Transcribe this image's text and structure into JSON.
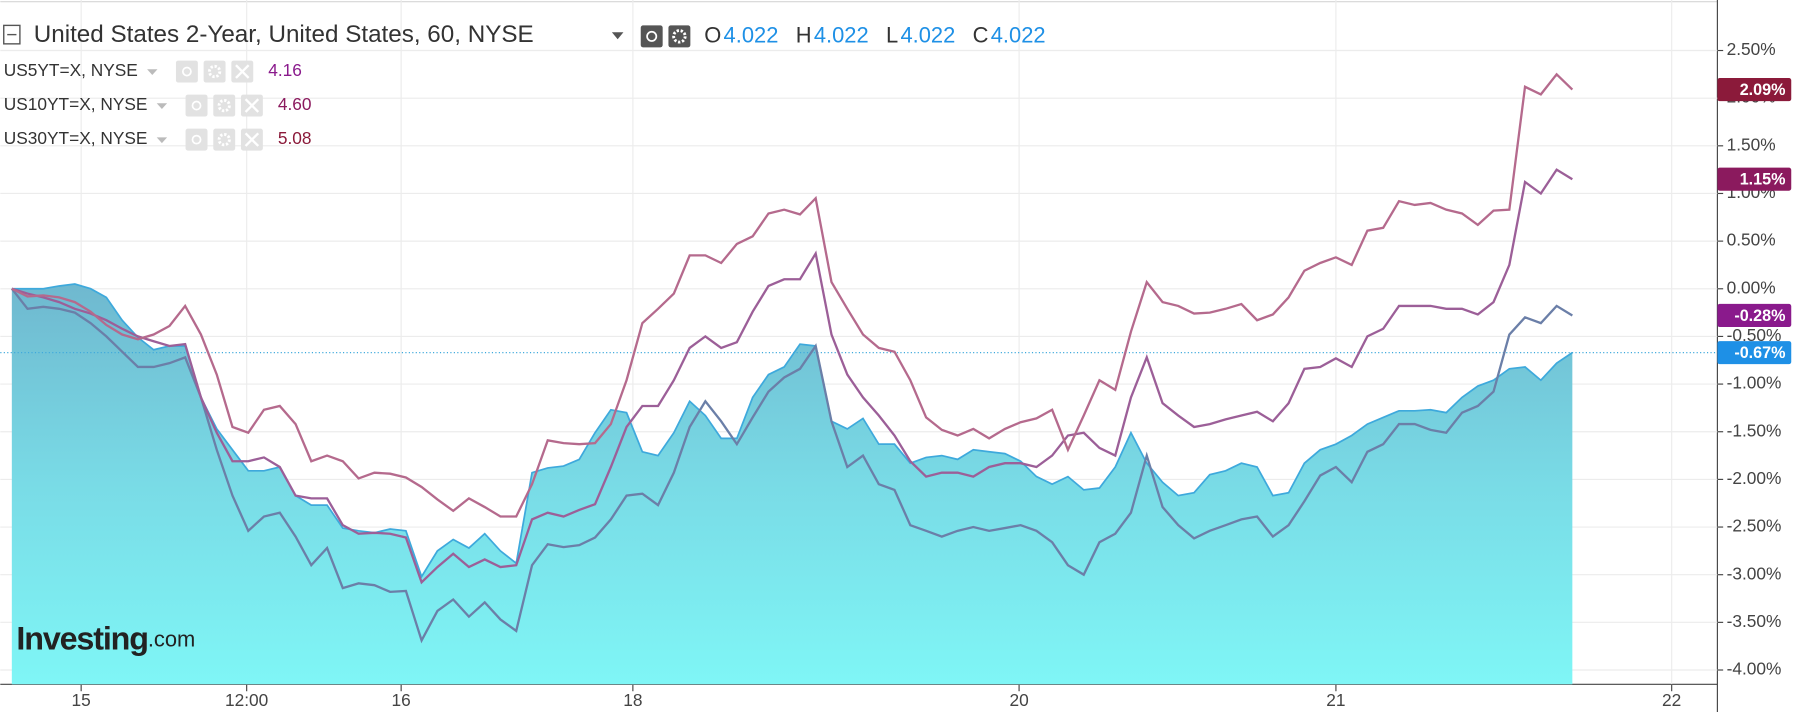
{
  "chart_data": {
    "type": "line",
    "ohlc": [
      {
        "label": "O",
        "value": "4.022"
      },
      {
        "label": "H",
        "value": "4.022"
      },
      {
        "label": "L",
        "value": "4.022"
      },
      {
        "label": "C",
        "value": "4.022"
      }
    ],
    "logo": {
      "brand": "Investing",
      "suffix": ".com"
    },
    "x": [
      0,
      1,
      2,
      3,
      4,
      5,
      6,
      7,
      8,
      9,
      10,
      11,
      12,
      13,
      14,
      15,
      16,
      17,
      18,
      19,
      20,
      21,
      22,
      23,
      24,
      25,
      26,
      27,
      28,
      29,
      30,
      31,
      32,
      33,
      34,
      35,
      36,
      37,
      38,
      39,
      40,
      41,
      42,
      43,
      44,
      45,
      46,
      47,
      48,
      49,
      50,
      51,
      52,
      53,
      54,
      55,
      56,
      57,
      58,
      59,
      60,
      61,
      62,
      63,
      64,
      65,
      66,
      67,
      68,
      69,
      70,
      71,
      72,
      73,
      74,
      75,
      76,
      77,
      78,
      79,
      80,
      81,
      82,
      83,
      84,
      85,
      86,
      87,
      88,
      89,
      90,
      91,
      92,
      93,
      94,
      95,
      96,
      97,
      98,
      99
    ],
    "xlim": [
      -0.73,
      108.2
    ],
    "xticks": [
      {
        "value": 4.4,
        "label": "15"
      },
      {
        "value": 14.9,
        "label": "12:00"
      },
      {
        "value": 24.7,
        "label": "16"
      },
      {
        "value": 39.4,
        "label": "18"
      },
      {
        "value": 63.9,
        "label": "20"
      },
      {
        "value": 84.0,
        "label": "21"
      },
      {
        "value": 105.3,
        "label": "22"
      }
    ],
    "ylim": [
      -4.15,
      3.03
    ],
    "yticks": [
      {
        "value": 2.5,
        "label": "2.50%"
      },
      {
        "value": 2.0,
        "label": "2.00%"
      },
      {
        "value": 1.5,
        "label": "1.50%"
      },
      {
        "value": 1.0,
        "label": "1.00%"
      },
      {
        "value": 0.5,
        "label": "0.50%"
      },
      {
        "value": 0,
        "label": "0.00%"
      },
      {
        "value": -0.5,
        "label": "-0.50%"
      },
      {
        "value": -1.0,
        "label": "-1.00%"
      },
      {
        "value": -1.5,
        "label": "-1.50%"
      },
      {
        "value": -2.0,
        "label": "-2.00%"
      },
      {
        "value": -2.5,
        "label": "-2.50%"
      },
      {
        "value": -3.0,
        "label": "-3.00%"
      },
      {
        "value": -3.5,
        "label": "-3.50%"
      },
      {
        "value": -4.0,
        "label": "-4.00%"
      }
    ],
    "grid": true,
    "series": [
      {
        "name": "United States 2-Year, United States, 60, NYSE",
        "style": "area",
        "color": "#3ea9dc",
        "label_color": "#1e90e6",
        "last_value_label": "-0.67%",
        "values": [
          0.0,
          0.0,
          0.0,
          0.03,
          0.05,
          0.0,
          -0.09,
          -0.33,
          -0.51,
          -0.64,
          -0.6,
          -0.6,
          -1.14,
          -1.47,
          -1.69,
          -1.91,
          -1.91,
          -1.87,
          -2.17,
          -2.27,
          -2.27,
          -2.51,
          -2.54,
          -2.56,
          -2.52,
          -2.54,
          -3.02,
          -2.75,
          -2.63,
          -2.72,
          -2.57,
          -2.75,
          -2.88,
          -1.93,
          -1.88,
          -1.86,
          -1.79,
          -1.51,
          -1.27,
          -1.3,
          -1.71,
          -1.75,
          -1.51,
          -1.18,
          -1.33,
          -1.57,
          -1.57,
          -1.14,
          -0.9,
          -0.82,
          -0.58,
          -0.6,
          -1.39,
          -1.47,
          -1.36,
          -1.63,
          -1.63,
          -1.83,
          -1.77,
          -1.75,
          -1.79,
          -1.69,
          -1.71,
          -1.73,
          -1.81,
          -1.97,
          -2.05,
          -1.97,
          -2.11,
          -2.09,
          -1.87,
          -1.51,
          -1.83,
          -2.03,
          -2.17,
          -2.14,
          -1.95,
          -1.91,
          -1.83,
          -1.87,
          -2.17,
          -2.14,
          -1.83,
          -1.69,
          -1.63,
          -1.54,
          -1.42,
          -1.35,
          -1.28,
          -1.28,
          -1.27,
          -1.3,
          -1.14,
          -1.02,
          -0.96,
          -0.84,
          -0.82,
          -0.96,
          -0.78,
          -0.67
        ]
      },
      {
        "name": "US5YT=X, NYSE",
        "price": "4.16",
        "style": "line",
        "color": "#6b7fa8",
        "label_color": "#8a1a8c",
        "last_value_label": "-0.28%",
        "values": [
          0.0,
          -0.21,
          -0.19,
          -0.21,
          -0.25,
          -0.36,
          -0.5,
          -0.66,
          -0.82,
          -0.82,
          -0.78,
          -0.72,
          -1.14,
          -1.69,
          -2.17,
          -2.54,
          -2.39,
          -2.35,
          -2.6,
          -2.9,
          -2.72,
          -3.14,
          -3.09,
          -3.11,
          -3.18,
          -3.17,
          -3.69,
          -3.38,
          -3.26,
          -3.44,
          -3.29,
          -3.47,
          -3.59,
          -2.9,
          -2.68,
          -2.71,
          -2.69,
          -2.61,
          -2.42,
          -2.17,
          -2.15,
          -2.27,
          -1.93,
          -1.45,
          -1.18,
          -1.39,
          -1.63,
          -1.35,
          -1.08,
          -0.93,
          -0.84,
          -0.6,
          -1.39,
          -1.87,
          -1.75,
          -2.05,
          -2.11,
          -2.48,
          -2.54,
          -2.6,
          -2.54,
          -2.5,
          -2.54,
          -2.51,
          -2.48,
          -2.54,
          -2.66,
          -2.9,
          -3.0,
          -2.66,
          -2.57,
          -2.35,
          -1.75,
          -2.29,
          -2.48,
          -2.62,
          -2.54,
          -2.48,
          -2.42,
          -2.39,
          -2.6,
          -2.48,
          -2.23,
          -1.96,
          -1.87,
          -2.03,
          -1.71,
          -1.63,
          -1.42,
          -1.42,
          -1.48,
          -1.51,
          -1.3,
          -1.23,
          -1.08,
          -0.48,
          -0.3,
          -0.36,
          -0.18,
          -0.28
        ]
      },
      {
        "name": "US10YT=X, NYSE",
        "price": "4.60",
        "style": "line",
        "color": "#9c5f98",
        "label_color": "#8b1a5e",
        "last_value_label": "1.15%",
        "values": [
          0.0,
          -0.05,
          -0.09,
          -0.14,
          -0.21,
          -0.26,
          -0.33,
          -0.42,
          -0.5,
          -0.55,
          -0.6,
          -0.58,
          -1.14,
          -1.51,
          -1.81,
          -1.81,
          -1.77,
          -1.87,
          -2.17,
          -2.2,
          -2.2,
          -2.48,
          -2.57,
          -2.56,
          -2.57,
          -2.61,
          -3.08,
          -2.92,
          -2.78,
          -2.92,
          -2.84,
          -2.92,
          -2.9,
          -2.42,
          -2.35,
          -2.39,
          -2.32,
          -2.26,
          -1.87,
          -1.45,
          -1.23,
          -1.23,
          -0.96,
          -0.62,
          -0.5,
          -0.62,
          -0.56,
          -0.24,
          0.03,
          0.1,
          0.1,
          0.37,
          -0.48,
          -0.9,
          -1.14,
          -1.33,
          -1.54,
          -1.81,
          -1.97,
          -1.93,
          -1.93,
          -1.97,
          -1.87,
          -1.83,
          -1.83,
          -1.87,
          -1.75,
          -1.54,
          -1.51,
          -1.67,
          -1.75,
          -1.14,
          -0.72,
          -1.2,
          -1.33,
          -1.45,
          -1.42,
          -1.37,
          -1.33,
          -1.29,
          -1.39,
          -1.2,
          -0.84,
          -0.82,
          -0.73,
          -0.82,
          -0.5,
          -0.42,
          -0.18,
          -0.18,
          -0.18,
          -0.21,
          -0.21,
          -0.27,
          -0.14,
          0.25,
          1.12,
          1.0,
          1.25,
          1.15
        ]
      },
      {
        "name": "US30YT=X, NYSE",
        "price": "5.08",
        "style": "line",
        "color": "#b56a8d",
        "label_color": "#8b1a3a",
        "last_value_label": "2.09%",
        "values": [
          0.0,
          -0.08,
          -0.07,
          -0.09,
          -0.14,
          -0.24,
          -0.38,
          -0.48,
          -0.53,
          -0.48,
          -0.39,
          -0.18,
          -0.48,
          -0.9,
          -1.45,
          -1.51,
          -1.27,
          -1.23,
          -1.42,
          -1.81,
          -1.75,
          -1.81,
          -1.99,
          -1.93,
          -1.94,
          -1.98,
          -2.08,
          -2.21,
          -2.33,
          -2.2,
          -2.29,
          -2.39,
          -2.39,
          -2.05,
          -1.59,
          -1.62,
          -1.63,
          -1.62,
          -1.42,
          -0.96,
          -0.36,
          -0.21,
          -0.05,
          0.35,
          0.35,
          0.27,
          0.47,
          0.55,
          0.79,
          0.83,
          0.78,
          0.95,
          0.07,
          -0.21,
          -0.48,
          -0.62,
          -0.66,
          -0.96,
          -1.35,
          -1.48,
          -1.54,
          -1.47,
          -1.57,
          -1.47,
          -1.4,
          -1.36,
          -1.27,
          -1.69,
          -1.33,
          -0.96,
          -1.06,
          -0.45,
          0.07,
          -0.14,
          -0.18,
          -0.26,
          -0.25,
          -0.21,
          -0.16,
          -0.33,
          -0.27,
          -0.09,
          0.19,
          0.27,
          0.33,
          0.25,
          0.61,
          0.64,
          0.92,
          0.88,
          0.9,
          0.83,
          0.79,
          0.67,
          0.82,
          0.83,
          2.12,
          2.04,
          2.25,
          2.09
        ]
      }
    ]
  }
}
